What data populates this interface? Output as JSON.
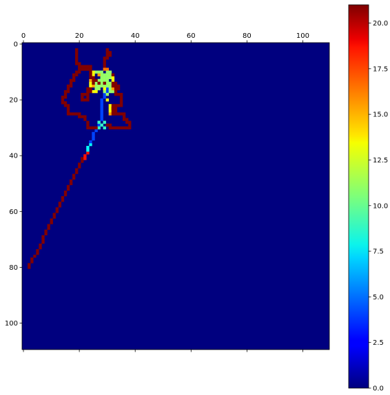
{
  "chart_data": {
    "type": "heatmap",
    "title": "",
    "xlabel": "",
    "ylabel": "",
    "x_axis_position": "top",
    "y_axis_inverted": true,
    "xlim": [
      -0.5,
      109.5
    ],
    "ylim": [
      109.5,
      -0.5
    ],
    "x_ticks": [
      0,
      20,
      40,
      60,
      80,
      100
    ],
    "y_ticks": [
      0,
      20,
      40,
      60,
      80,
      100
    ],
    "grid": false,
    "colormap": "jet",
    "background_value": 0.0,
    "colorbar": {
      "position": "right",
      "min": 0.0,
      "max": 21.0,
      "ticks": [
        0.0,
        2.5,
        5.0,
        7.5,
        10.0,
        12.5,
        15.0,
        17.5,
        20.0
      ],
      "tick_labels": [
        "0.0",
        "2.5",
        "5.0",
        "7.5",
        "10.0",
        "12.5",
        "15.0",
        "17.5",
        "20.0"
      ]
    },
    "paths": [
      {
        "value": 21,
        "points": [
          [
            2,
            80
          ],
          [
            2,
            79
          ],
          [
            3,
            78
          ],
          [
            3,
            77
          ],
          [
            4,
            76
          ],
          [
            5,
            75
          ],
          [
            5,
            74
          ],
          [
            6,
            73
          ],
          [
            6,
            72
          ],
          [
            7,
            71
          ],
          [
            7,
            70
          ],
          [
            7,
            69
          ],
          [
            8,
            68
          ],
          [
            8,
            67
          ],
          [
            9,
            66
          ],
          [
            9,
            65
          ],
          [
            10,
            64
          ],
          [
            10,
            63
          ],
          [
            11,
            62
          ],
          [
            11,
            61
          ],
          [
            12,
            60
          ],
          [
            12,
            59
          ],
          [
            13,
            58
          ],
          [
            13,
            57
          ],
          [
            14,
            56
          ],
          [
            14,
            55
          ],
          [
            15,
            54
          ],
          [
            15,
            53
          ],
          [
            16,
            52
          ],
          [
            16,
            51
          ],
          [
            17,
            50
          ],
          [
            17,
            49
          ],
          [
            18,
            48
          ],
          [
            18,
            47
          ],
          [
            19,
            46
          ],
          [
            19,
            45
          ],
          [
            20,
            44
          ],
          [
            20,
            43
          ],
          [
            21,
            42
          ],
          [
            21,
            41
          ]
        ]
      },
      {
        "value": 18,
        "points": [
          [
            22,
            41
          ],
          [
            22,
            40
          ],
          [
            23,
            39
          ]
        ]
      },
      {
        "value": 8,
        "points": [
          [
            23,
            38
          ],
          [
            23,
            37
          ],
          [
            24,
            36
          ]
        ]
      },
      {
        "value": 4,
        "points": [
          [
            24,
            35
          ],
          [
            25,
            34
          ],
          [
            25,
            33
          ],
          [
            25,
            32
          ],
          [
            26,
            31
          ],
          [
            26,
            30
          ],
          [
            27,
            29
          ],
          [
            27,
            28
          ],
          [
            28,
            27
          ],
          [
            28,
            26
          ],
          [
            28,
            25
          ],
          [
            28,
            24
          ],
          [
            28,
            23
          ],
          [
            28,
            22
          ],
          [
            28,
            21
          ],
          [
            28,
            20
          ],
          [
            29,
            19
          ],
          [
            29,
            18
          ],
          [
            30,
            17
          ],
          [
            30,
            16
          ]
        ]
      },
      {
        "value": 9,
        "points": [
          [
            27,
            28
          ],
          [
            28,
            29
          ],
          [
            29,
            30
          ],
          [
            30,
            29
          ],
          [
            29,
            28
          ],
          [
            27,
            30
          ]
        ]
      },
      {
        "value": 21,
        "points": [
          [
            26,
            30
          ],
          [
            25,
            30
          ],
          [
            24,
            30
          ],
          [
            23,
            30
          ],
          [
            23,
            29
          ],
          [
            23,
            28
          ],
          [
            22,
            27
          ],
          [
            22,
            26
          ],
          [
            21,
            26
          ],
          [
            20,
            26
          ],
          [
            20,
            25
          ],
          [
            19,
            25
          ],
          [
            18,
            25
          ],
          [
            17,
            25
          ],
          [
            16,
            25
          ],
          [
            16,
            24
          ],
          [
            16,
            23
          ],
          [
            16,
            22
          ],
          [
            15,
            22
          ],
          [
            15,
            21
          ],
          [
            14,
            21
          ],
          [
            14,
            20
          ],
          [
            14,
            19
          ],
          [
            15,
            19
          ],
          [
            15,
            18
          ],
          [
            15,
            17
          ],
          [
            16,
            17
          ],
          [
            16,
            16
          ],
          [
            16,
            15
          ],
          [
            17,
            15
          ],
          [
            17,
            14
          ],
          [
            17,
            13
          ],
          [
            18,
            13
          ],
          [
            18,
            12
          ],
          [
            18,
            11
          ],
          [
            19,
            11
          ],
          [
            19,
            10
          ],
          [
            20,
            10
          ],
          [
            20,
            9
          ],
          [
            21,
            9
          ],
          [
            22,
            9
          ],
          [
            23,
            9
          ],
          [
            24,
            9
          ],
          [
            24,
            8
          ],
          [
            23,
            8
          ],
          [
            22,
            8
          ],
          [
            21,
            8
          ],
          [
            20,
            8
          ],
          [
            20,
            7
          ],
          [
            19,
            7
          ],
          [
            19,
            6
          ],
          [
            19,
            5
          ],
          [
            19,
            4
          ],
          [
            19,
            3
          ],
          [
            19,
            2
          ]
        ]
      },
      {
        "value": 21,
        "points": [
          [
            21,
            18
          ],
          [
            22,
            18
          ],
          [
            23,
            18
          ],
          [
            23,
            19
          ],
          [
            23,
            20
          ],
          [
            22,
            20
          ],
          [
            21,
            20
          ],
          [
            21,
            19
          ]
        ]
      },
      {
        "value": 21,
        "points": [
          [
            30,
            2
          ],
          [
            30,
            3
          ],
          [
            31,
            3
          ],
          [
            31,
            4
          ],
          [
            30,
            4
          ],
          [
            30,
            5
          ],
          [
            29,
            5
          ],
          [
            29,
            6
          ],
          [
            29,
            7
          ],
          [
            29,
            8
          ]
        ]
      },
      {
        "value": 16,
        "points": [
          [
            29,
            9
          ],
          [
            30,
            9
          ]
        ]
      },
      {
        "value": 11,
        "points": [
          [
            26,
            10
          ],
          [
            27,
            10
          ],
          [
            28,
            10
          ],
          [
            28,
            11
          ],
          [
            29,
            11
          ],
          [
            29,
            12
          ],
          [
            28,
            12
          ],
          [
            27,
            13
          ],
          [
            28,
            13
          ],
          [
            29,
            13
          ],
          [
            30,
            13
          ],
          [
            30,
            12
          ],
          [
            31,
            12
          ],
          [
            31,
            11
          ],
          [
            31,
            10
          ],
          [
            30,
            10
          ],
          [
            30,
            11
          ],
          [
            28,
            14
          ],
          [
            28,
            15
          ],
          [
            29,
            15
          ],
          [
            30,
            14
          ],
          [
            31,
            14
          ],
          [
            31,
            15
          ],
          [
            30,
            15
          ],
          [
            29,
            16
          ],
          [
            27,
            16
          ],
          [
            26,
            16
          ],
          [
            26,
            15
          ],
          [
            27,
            15
          ],
          [
            26,
            14
          ],
          [
            31,
            16
          ],
          [
            32,
            17
          ],
          [
            31,
            17
          ],
          [
            30,
            18
          ],
          [
            29,
            17
          ]
        ]
      },
      {
        "value": 13,
        "points": [
          [
            25,
            11
          ],
          [
            25,
            10
          ],
          [
            32,
            12
          ],
          [
            32,
            13
          ],
          [
            26,
            17
          ],
          [
            25,
            17
          ],
          [
            31,
            22
          ],
          [
            31,
            23
          ],
          [
            31,
            24
          ],
          [
            29,
            16
          ],
          [
            24,
            14
          ],
          [
            24,
            15
          ],
          [
            30,
            20
          ]
        ]
      },
      {
        "value": 15,
        "points": [
          [
            27,
            11
          ],
          [
            32,
            16
          ],
          [
            25,
            15
          ],
          [
            31,
            25
          ],
          [
            24,
            13
          ]
        ]
      },
      {
        "value": 21,
        "points": [
          [
            24,
            10
          ],
          [
            24,
            11
          ],
          [
            24,
            12
          ],
          [
            25,
            12
          ],
          [
            25,
            13
          ],
          [
            25,
            14
          ],
          [
            24,
            16
          ],
          [
            23,
            16
          ],
          [
            23,
            17
          ],
          [
            24,
            17
          ],
          [
            33,
            17
          ],
          [
            33,
            16
          ],
          [
            34,
            16
          ],
          [
            34,
            15
          ],
          [
            33,
            15
          ],
          [
            33,
            14
          ],
          [
            32,
            14
          ],
          [
            32,
            15
          ],
          [
            33,
            18
          ],
          [
            34,
            18
          ],
          [
            35,
            18
          ],
          [
            35,
            19
          ],
          [
            35,
            20
          ],
          [
            35,
            21
          ],
          [
            35,
            22
          ],
          [
            34,
            22
          ],
          [
            33,
            22
          ],
          [
            32,
            22
          ],
          [
            32,
            23
          ],
          [
            32,
            24
          ],
          [
            32,
            25
          ],
          [
            33,
            25
          ],
          [
            34,
            25
          ],
          [
            35,
            25
          ],
          [
            36,
            25
          ],
          [
            36,
            26
          ],
          [
            36,
            27
          ],
          [
            37,
            27
          ],
          [
            37,
            28
          ],
          [
            38,
            28
          ],
          [
            38,
            29
          ],
          [
            38,
            30
          ],
          [
            37,
            30
          ],
          [
            36,
            30
          ],
          [
            35,
            30
          ],
          [
            34,
            30
          ],
          [
            33,
            30
          ],
          [
            32,
            30
          ],
          [
            31,
            30
          ],
          [
            31,
            29
          ],
          [
            30,
            29
          ],
          [
            32,
            23
          ],
          [
            33,
            23
          ],
          [
            33,
            24
          ]
        ]
      },
      {
        "value": 21,
        "points": [
          [
            26,
            13
          ],
          [
            27,
            14
          ],
          [
            29,
            14
          ],
          [
            32,
            11
          ]
        ]
      }
    ]
  }
}
